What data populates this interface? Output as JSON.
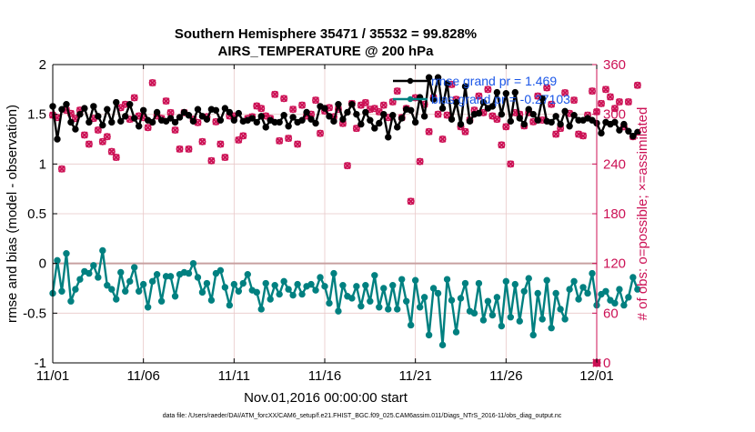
{
  "colors": {
    "rmse": "#000000",
    "bias": "#008080",
    "obs": "#cc1155",
    "legend_text": "#1a56e8",
    "grid": "#e8c8c8",
    "zero_line": "#c8a0a0",
    "axis": "#000000"
  },
  "chart_data": {
    "type": "line",
    "title": "Southern Hemisphere 35471 / 35532 = 99.828%",
    "subtitle": "AIRS_TEMPERATURE @ 200 hPa",
    "xlabel": "Nov.01,2016 00:00:00 start",
    "ylabel_left": "rmse and bias (model - observation)",
    "ylabel_right": "# of obs: o=possible; ×=assimilated",
    "footer": "data file: /Users/raeder/DAI/ATM_forcXX/CAM6_setup/f.e21.FHIST_BGC.f09_025.CAM6assim.011/Diags_NTrS_2016-11/obs_diag_output.nc",
    "x_ticks": [
      "11/01",
      "11/06",
      "11/11",
      "11/16",
      "11/21",
      "11/26",
      "12/01"
    ],
    "x_tick_values": [
      0,
      5,
      10,
      15,
      20,
      25,
      30
    ],
    "xlim": [
      0,
      30
    ],
    "ylim_left": [
      -1,
      2
    ],
    "y_ticks_left": [
      "-1",
      "-0.5",
      "0",
      "0.5",
      "1",
      "1.5",
      "2"
    ],
    "y_tick_values_left": [
      -1,
      -0.5,
      0,
      0.5,
      1,
      1.5,
      2
    ],
    "ylim_right": [
      0,
      360
    ],
    "y_ticks_right": [
      "0",
      "60",
      "120",
      "180",
      "240",
      "300",
      "360"
    ],
    "y_tick_values_right": [
      0,
      60,
      120,
      180,
      240,
      300,
      360
    ],
    "grid": true,
    "legend_position": "top-right",
    "x_step_days": 0.25,
    "series": [
      {
        "name": "rmse",
        "legend_label": "rmse grand pr = 1.469",
        "axis": "left",
        "values": [
          1.58,
          1.25,
          1.55,
          1.6,
          1.42,
          1.35,
          1.5,
          1.56,
          1.42,
          1.58,
          1.48,
          1.39,
          1.55,
          1.42,
          1.62,
          1.43,
          1.48,
          1.6,
          1.46,
          1.38,
          1.54,
          1.44,
          1.42,
          1.52,
          1.44,
          1.43,
          1.46,
          1.42,
          1.47,
          1.52,
          1.49,
          1.43,
          1.55,
          1.48,
          1.45,
          1.55,
          1.54,
          1.44,
          1.56,
          1.52,
          1.44,
          1.51,
          1.43,
          1.44,
          1.46,
          1.42,
          1.48,
          1.37,
          1.44,
          1.42,
          1.42,
          1.49,
          1.38,
          1.47,
          1.42,
          1.44,
          1.52,
          1.45,
          1.41,
          1.58,
          1.56,
          1.48,
          1.43,
          1.6,
          1.45,
          1.52,
          1.6,
          1.5,
          1.4,
          1.52,
          1.44,
          1.36,
          1.41,
          1.5,
          1.27,
          1.49,
          1.37,
          1.46,
          1.55,
          1.54,
          1.42,
          1.67,
          1.48,
          1.87,
          1.65,
          1.87,
          1.56,
          1.81,
          1.45,
          1.62,
          1.4,
          1.78,
          1.43,
          1.5,
          1.51,
          1.62,
          1.56,
          1.58,
          1.72,
          1.5,
          1.71,
          1.43,
          1.72,
          1.46,
          1.4,
          1.55,
          1.5,
          1.44,
          1.66,
          1.43,
          1.42,
          1.48,
          1.4,
          1.53,
          1.38,
          1.49,
          1.44,
          1.44,
          1.46,
          1.44,
          1.41,
          1.31,
          1.42,
          1.4,
          1.42,
          1.34,
          1.4,
          1.33,
          1.28,
          1.32
        ]
      },
      {
        "name": "bias",
        "legend_label": "bias grand pr = -0.27103",
        "axis": "left",
        "values": [
          -0.3,
          0.03,
          -0.28,
          0.1,
          -0.38,
          -0.26,
          -0.16,
          -0.08,
          -0.1,
          -0.02,
          -0.14,
          0.13,
          -0.22,
          -0.26,
          -0.36,
          -0.09,
          -0.28,
          -0.18,
          -0.04,
          -0.28,
          -0.21,
          -0.44,
          -0.18,
          -0.11,
          -0.38,
          -0.13,
          -0.13,
          -0.33,
          -0.11,
          -0.09,
          -0.1,
          0.0,
          -0.14,
          -0.29,
          -0.2,
          -0.37,
          -0.1,
          -0.07,
          -0.24,
          -0.42,
          -0.21,
          -0.28,
          -0.2,
          -0.11,
          -0.27,
          -0.29,
          -0.46,
          -0.2,
          -0.36,
          -0.22,
          -0.31,
          -0.18,
          -0.26,
          -0.32,
          -0.21,
          -0.31,
          -0.23,
          -0.21,
          -0.27,
          -0.14,
          -0.23,
          -0.4,
          -0.1,
          -0.48,
          -0.22,
          -0.33,
          -0.35,
          -0.23,
          -0.43,
          -0.22,
          -0.38,
          -0.12,
          -0.44,
          -0.25,
          -0.46,
          -0.22,
          -0.46,
          -0.16,
          -0.38,
          -0.62,
          -0.17,
          -0.44,
          -0.34,
          -0.72,
          -0.25,
          -0.3,
          -0.82,
          -0.16,
          -0.37,
          -0.69,
          -0.35,
          -0.2,
          -0.48,
          -0.5,
          -0.2,
          -0.57,
          -0.38,
          -0.52,
          -0.34,
          -0.63,
          -0.18,
          -0.54,
          -0.21,
          -0.58,
          -0.28,
          -0.15,
          -0.72,
          -0.3,
          -0.56,
          -0.17,
          -0.65,
          -0.3,
          -0.46,
          -0.56,
          -0.26,
          -0.18,
          -0.36,
          -0.24,
          -0.3,
          -0.1,
          -0.42,
          -0.31,
          -0.28,
          -0.37,
          -0.4,
          -0.26,
          -0.42,
          -0.34,
          -0.14,
          -0.26
        ]
      },
      {
        "name": "obs_possible",
        "legend_label": "",
        "axis": "right",
        "values": [
          299,
          296,
          234,
          305,
          301,
          295,
          305,
          275,
          264,
          295,
          281,
          267,
          273,
          255,
          248,
          308,
          312,
          294,
          320,
          298,
          296,
          284,
          338,
          298,
          295,
          316,
          302,
          281,
          258,
          302,
          258,
          294,
          290,
          267,
          297,
          244,
          291,
          264,
          248,
          298,
          298,
          269,
          274,
          295,
          297,
          310,
          307,
          298,
          295,
          324,
          268,
          319,
          271,
          306,
          264,
          311,
          298,
          300,
          317,
          277,
          304,
          308,
          297,
          306,
          289,
          238,
          313,
          283,
          311,
          314,
          306,
          307,
          303,
          311,
          296,
          315,
          328,
          296,
          307,
          195,
          320,
          243,
          312,
          279,
          320,
          300,
          270,
          299,
          336,
          318,
          285,
          279,
          293,
          305,
          322,
          302,
          330,
          298,
          294,
          263,
          285,
          240,
          302,
          300,
          286,
          302,
          291,
          322,
          293,
          332,
          312,
          276,
          283,
          326,
          301,
          317,
          276,
          274,
          299,
          328,
          303,
          313,
          330,
          321,
          307,
          315,
          285,
          315,
          273,
          335
        ]
      },
      {
        "name": "obs_assimilated",
        "legend_label": "",
        "axis": "right",
        "values": [
          299,
          296,
          234,
          305,
          301,
          295,
          305,
          275,
          264,
          295,
          281,
          267,
          273,
          255,
          248,
          308,
          312,
          294,
          320,
          298,
          296,
          284,
          338,
          298,
          295,
          316,
          302,
          281,
          258,
          302,
          258,
          294,
          290,
          267,
          297,
          244,
          291,
          264,
          248,
          298,
          298,
          269,
          274,
          295,
          297,
          310,
          307,
          298,
          295,
          324,
          268,
          319,
          271,
          306,
          264,
          311,
          298,
          300,
          317,
          277,
          304,
          308,
          297,
          306,
          289,
          238,
          313,
          283,
          311,
          314,
          306,
          307,
          303,
          311,
          296,
          315,
          328,
          296,
          307,
          195,
          320,
          243,
          312,
          279,
          320,
          300,
          270,
          299,
          336,
          318,
          285,
          279,
          293,
          305,
          322,
          302,
          330,
          298,
          294,
          263,
          285,
          240,
          302,
          300,
          286,
          302,
          291,
          322,
          293,
          332,
          312,
          276,
          283,
          326,
          301,
          317,
          276,
          274,
          299,
          328,
          303,
          313,
          330,
          321,
          307,
          315,
          285,
          315,
          273,
          335
        ]
      }
    ],
    "right_axis_marker_at_end": {
      "x": 30,
      "y": 0
    }
  }
}
